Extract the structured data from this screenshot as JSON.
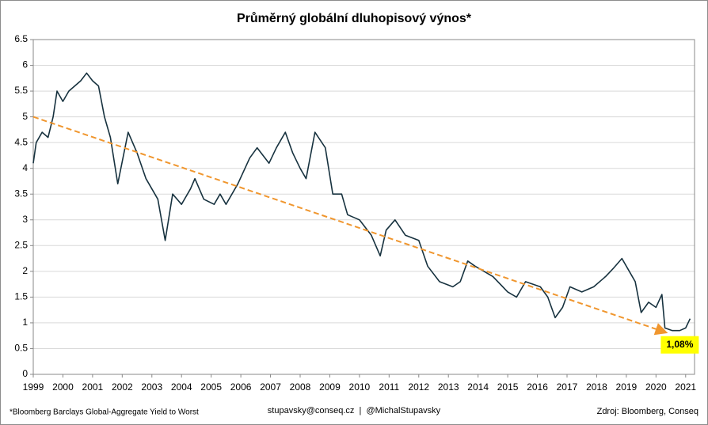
{
  "chart_data": {
    "type": "line",
    "title": "Průměrný globální dluhopisový výnos*",
    "annotation": "1,08%",
    "footnote": "*Bloomberg  Barclays Global-Aggregate  Yield to Worst",
    "contact": "stupavsky@conseq.cz  |  @MichalStupavsky",
    "source": "Zdroj: Bloomberg, Conseq",
    "xlim": [
      1999,
      2021.3
    ],
    "xticks": [
      1999,
      2000,
      2001,
      2002,
      2003,
      2004,
      2005,
      2006,
      2007,
      2008,
      2009,
      2010,
      2011,
      2012,
      2013,
      2014,
      2015,
      2016,
      2017,
      2018,
      2019,
      2020,
      2021
    ],
    "ylim": [
      0,
      6.5
    ],
    "yticks": [
      0,
      0.5,
      1,
      1.5,
      2,
      2.5,
      3,
      3.5,
      4,
      4.5,
      5,
      5.5,
      6,
      6.5
    ],
    "grid": true,
    "series": [
      {
        "color": "#17323f",
        "style": "solid",
        "x": [
          1999.0,
          1999.1,
          1999.3,
          1999.5,
          1999.67,
          1999.8,
          2000.0,
          2000.2,
          2000.4,
          2000.6,
          2000.8,
          2001.0,
          2001.2,
          2001.4,
          2001.6,
          2001.85,
          2002.2,
          2002.5,
          2002.8,
          2003.2,
          2003.45,
          2003.7,
          2004.0,
          2004.3,
          2004.45,
          2004.75,
          2005.1,
          2005.3,
          2005.5,
          2005.9,
          2006.3,
          2006.55,
          2006.95,
          2007.2,
          2007.5,
          2007.75,
          2008.0,
          2008.2,
          2008.5,
          2008.85,
          2009.1,
          2009.4,
          2009.6,
          2010.0,
          2010.4,
          2010.7,
          2010.9,
          2011.2,
          2011.55,
          2012.0,
          2012.3,
          2012.7,
          2013.15,
          2013.4,
          2013.65,
          2013.9,
          2014.5,
          2015.0,
          2015.3,
          2015.6,
          2016.1,
          2016.35,
          2016.6,
          2016.85,
          2017.1,
          2017.5,
          2017.9,
          2018.3,
          2018.55,
          2018.85,
          2019.1,
          2019.3,
          2019.5,
          2019.75,
          2020.0,
          2020.2,
          2020.3,
          2020.55,
          2020.8,
          2021.0,
          2021.15
        ],
        "values": [
          4.1,
          4.5,
          4.7,
          4.6,
          5.0,
          5.5,
          5.3,
          5.5,
          5.6,
          5.7,
          5.85,
          5.7,
          5.6,
          5.0,
          4.6,
          3.7,
          4.7,
          4.3,
          3.8,
          3.4,
          2.6,
          3.5,
          3.3,
          3.6,
          3.8,
          3.4,
          3.3,
          3.5,
          3.3,
          3.7,
          4.2,
          4.4,
          4.1,
          4.4,
          4.7,
          4.3,
          4.0,
          3.8,
          4.7,
          4.4,
          3.5,
          3.5,
          3.1,
          3.0,
          2.7,
          2.3,
          2.8,
          3.0,
          2.7,
          2.6,
          2.1,
          1.8,
          1.7,
          1.8,
          2.2,
          2.1,
          1.9,
          1.6,
          1.5,
          1.8,
          1.7,
          1.5,
          1.1,
          1.3,
          1.7,
          1.6,
          1.7,
          1.9,
          2.05,
          2.25,
          2.0,
          1.8,
          1.2,
          1.4,
          1.3,
          1.55,
          0.9,
          0.85,
          0.85,
          0.9,
          1.08
        ]
      },
      {
        "color": "#f0962e",
        "style": "dashed",
        "x": [
          1999,
          2020.3
        ],
        "values": [
          5.0,
          0.82
        ]
      }
    ]
  }
}
